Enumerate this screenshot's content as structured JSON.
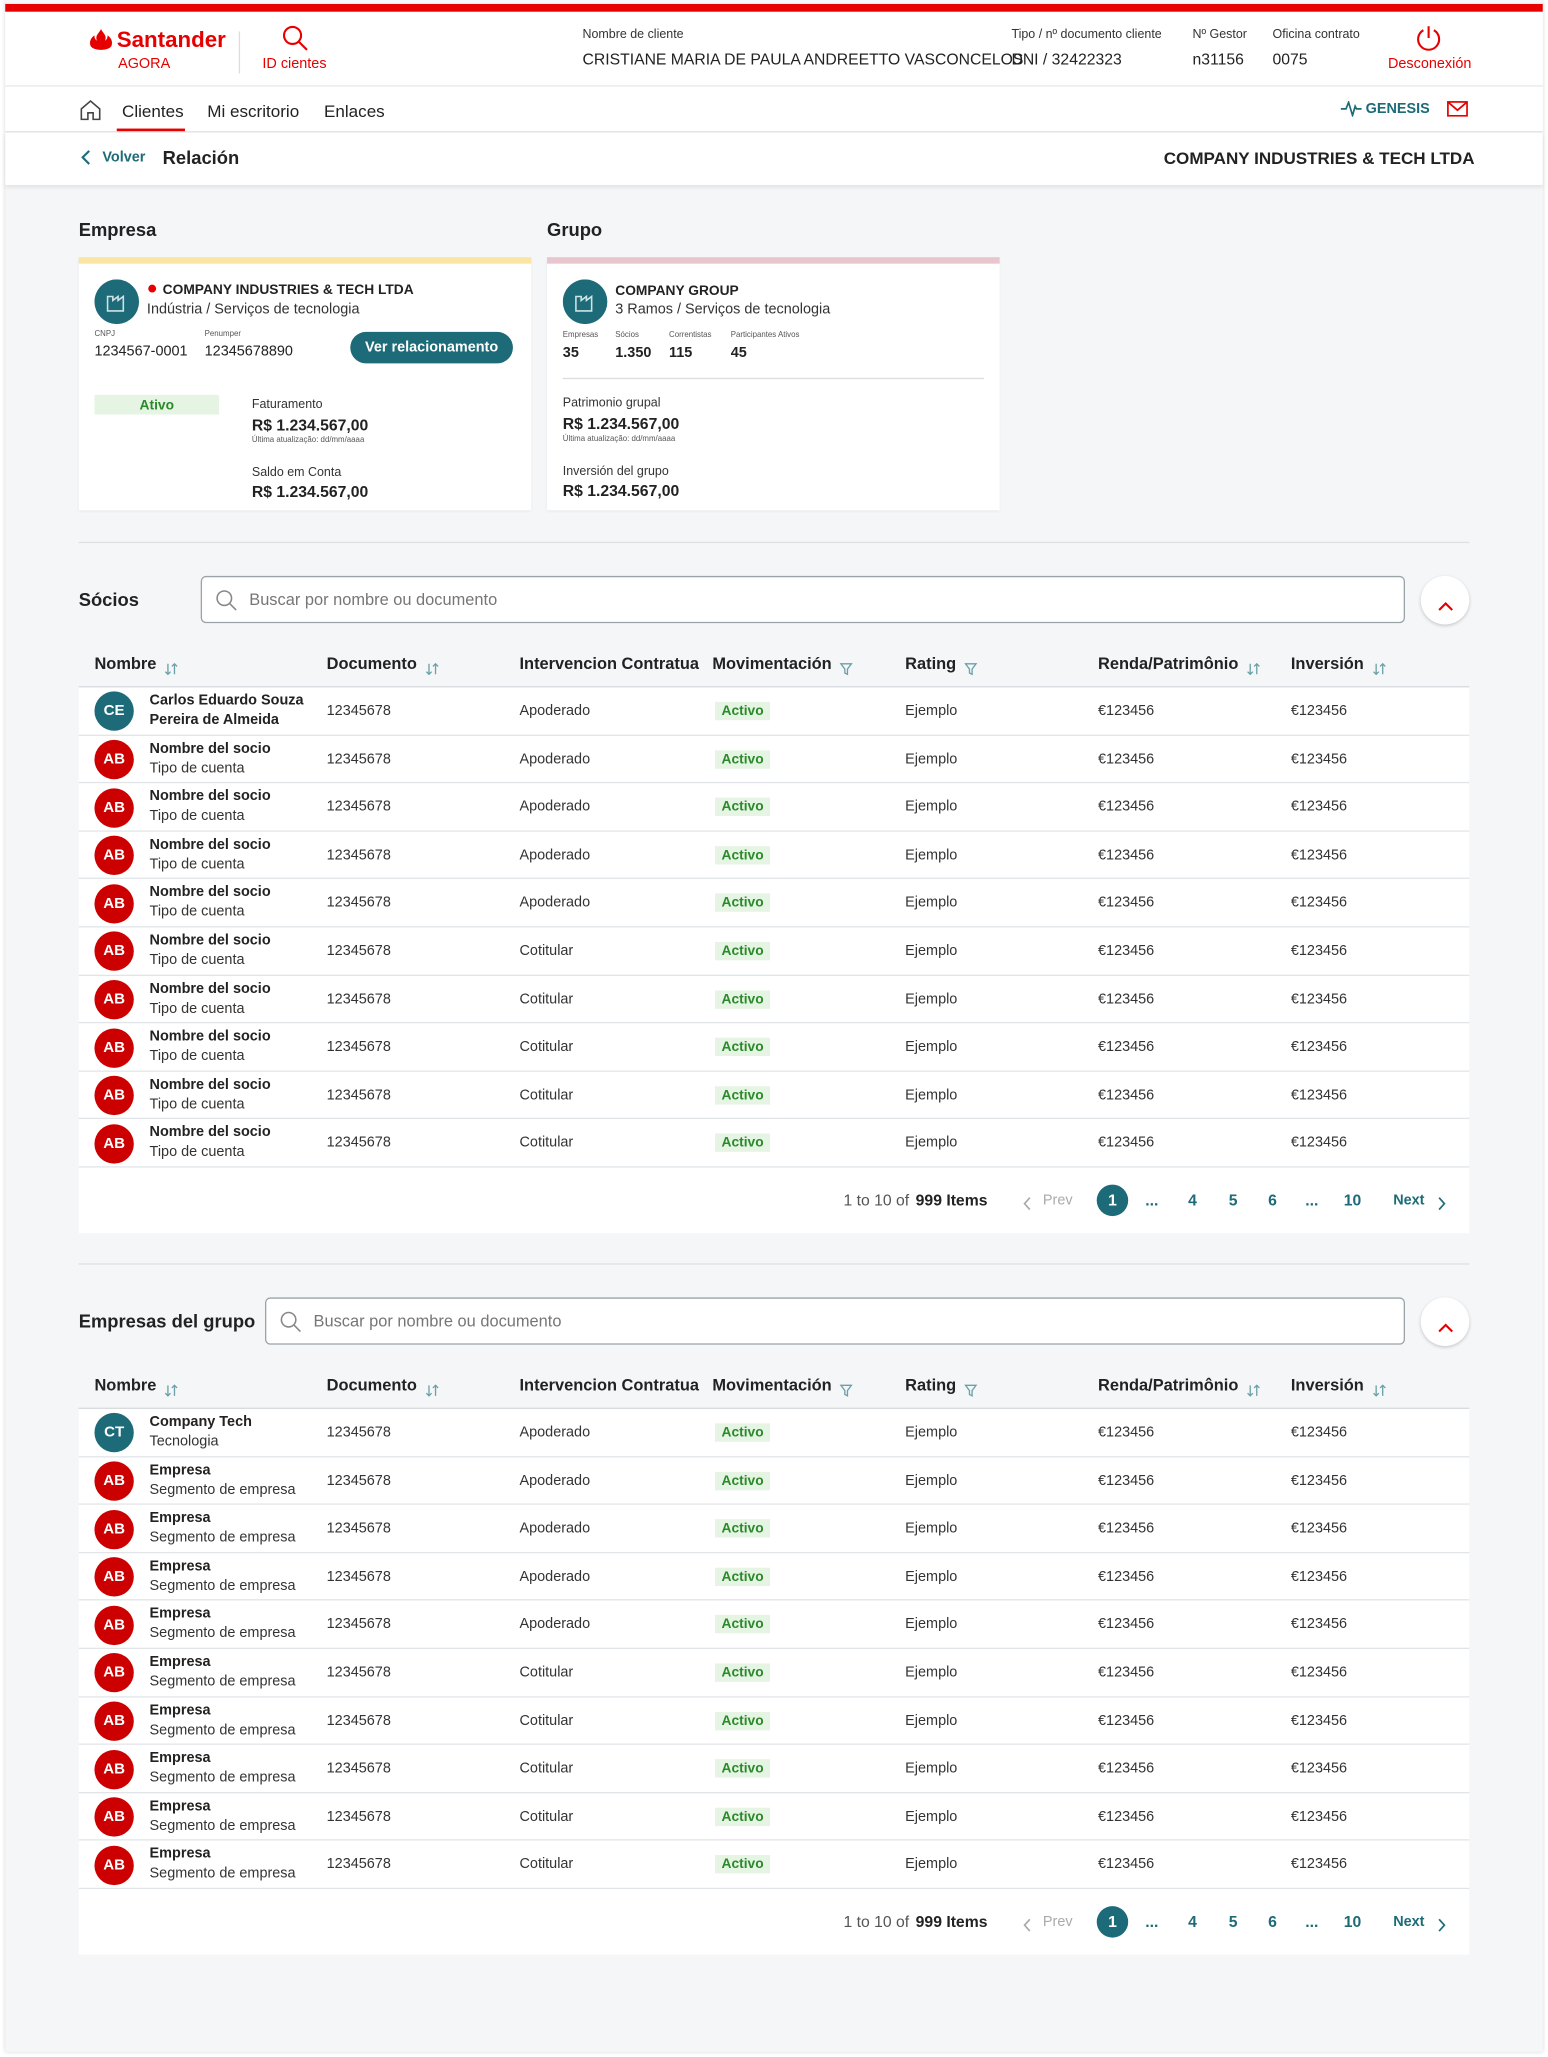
{
  "header": {
    "brand": "Santander",
    "brand_sub": "AGORA",
    "id_clients": "ID cientes",
    "client_name_label": "Nombre de cliente",
    "client_name": "CRISTIANE MARIA DE PAULA ANDREETTO VASCONCELOS",
    "doc_label": "Tipo / nº documento cliente",
    "doc": "DNI / 32422323",
    "gestor_label": "Nº Gestor",
    "gestor": "n31156",
    "oficina_label": "Oficina contrato",
    "oficina": "0075",
    "logout": "Desconexión"
  },
  "nav": {
    "items": [
      "Clientes",
      "Mi escritorio",
      "Enlaces"
    ],
    "genesis": "GENESIS"
  },
  "subheader": {
    "back": "Volver",
    "title": "Relación",
    "company": "COMPANY INDUSTRIES & TECH LTDA"
  },
  "empresa": {
    "section": "Empresa",
    "name": "COMPANY INDUSTRIES & TECH LTDA",
    "sector": "Indústria / Serviços de tecnologia",
    "cnpj_label": "CNPJ",
    "cnpj": "1234567-0001",
    "penumper_label": "Penumper",
    "penumper": "12345678890",
    "button": "Ver relacionamento",
    "status": "Ativo",
    "faturamento_label": "Faturamento",
    "faturamento": "R$ 1.234.567,00",
    "updated": "Última atualização: dd/mm/aaaa",
    "saldo_label": "Saldo em Conta",
    "saldo": "R$ 1.234.567,00"
  },
  "grupo": {
    "section": "Grupo",
    "name": "COMPANY GROUP",
    "sub": "3 Ramos / Serviços de tecnologia",
    "stats": [
      {
        "label": "Empresas",
        "value": "35"
      },
      {
        "label": "Sócios",
        "value": "1.350"
      },
      {
        "label": "Correntistas",
        "value": "115"
      },
      {
        "label": "Participantes Ativos",
        "value": "45"
      }
    ],
    "patrimonio_label": "Patrimonio grupal",
    "patrimonio": "R$ 1.234.567,00",
    "updated": "Última atualização: dd/mm/aaaa",
    "inversion_label": "Inversión del grupo",
    "inversion": "R$ 1.234.567,00"
  },
  "socios": {
    "title": "Sócios",
    "search": "Buscar por nombre ou documento",
    "columns": [
      "Nombre",
      "Documento",
      "Intervencion Contratua",
      "Movimentación",
      "Rating",
      "Renda/Patrimônio",
      "Inversión"
    ],
    "rows": [
      {
        "initials": "CE",
        "avatar_color": "#1d6b78",
        "name": "Carlos Eduardo Souza Pereira de Almeida",
        "sub": null,
        "documento": "12345678",
        "intervencion": "Apoderado",
        "movimentacion": "Activo",
        "rating": "Ejemplo",
        "renda": "€123456",
        "inversion": "€123456"
      },
      {
        "initials": "AB",
        "avatar_color": "#cc0000",
        "name": "Nombre del socio",
        "sub": "Tipo de cuenta",
        "documento": "12345678",
        "intervencion": "Apoderado",
        "movimentacion": "Activo",
        "rating": "Ejemplo",
        "renda": "€123456",
        "inversion": "€123456"
      },
      {
        "initials": "AB",
        "avatar_color": "#cc0000",
        "name": "Nombre del socio",
        "sub": "Tipo de cuenta",
        "documento": "12345678",
        "intervencion": "Apoderado",
        "movimentacion": "Activo",
        "rating": "Ejemplo",
        "renda": "€123456",
        "inversion": "€123456"
      },
      {
        "initials": "AB",
        "avatar_color": "#cc0000",
        "name": "Nombre del socio",
        "sub": "Tipo de cuenta",
        "documento": "12345678",
        "intervencion": "Apoderado",
        "movimentacion": "Activo",
        "rating": "Ejemplo",
        "renda": "€123456",
        "inversion": "€123456"
      },
      {
        "initials": "AB",
        "avatar_color": "#cc0000",
        "name": "Nombre del socio",
        "sub": "Tipo de cuenta",
        "documento": "12345678",
        "intervencion": "Apoderado",
        "movimentacion": "Activo",
        "rating": "Ejemplo",
        "renda": "€123456",
        "inversion": "€123456"
      },
      {
        "initials": "AB",
        "avatar_color": "#cc0000",
        "name": "Nombre del socio",
        "sub": "Tipo de cuenta",
        "documento": "12345678",
        "intervencion": "Cotitular",
        "movimentacion": "Activo",
        "rating": "Ejemplo",
        "renda": "€123456",
        "inversion": "€123456"
      },
      {
        "initials": "AB",
        "avatar_color": "#cc0000",
        "name": "Nombre del socio",
        "sub": "Tipo de cuenta",
        "documento": "12345678",
        "intervencion": "Cotitular",
        "movimentacion": "Activo",
        "rating": "Ejemplo",
        "renda": "€123456",
        "inversion": "€123456"
      },
      {
        "initials": "AB",
        "avatar_color": "#cc0000",
        "name": "Nombre del socio",
        "sub": "Tipo de cuenta",
        "documento": "12345678",
        "intervencion": "Cotitular",
        "movimentacion": "Activo",
        "rating": "Ejemplo",
        "renda": "€123456",
        "inversion": "€123456"
      },
      {
        "initials": "AB",
        "avatar_color": "#cc0000",
        "name": "Nombre del socio",
        "sub": "Tipo de cuenta",
        "documento": "12345678",
        "intervencion": "Cotitular",
        "movimentacion": "Activo",
        "rating": "Ejemplo",
        "renda": "€123456",
        "inversion": "€123456"
      },
      {
        "initials": "AB",
        "avatar_color": "#cc0000",
        "name": "Nombre del socio",
        "sub": "Tipo de cuenta",
        "documento": "12345678",
        "intervencion": "Cotitular",
        "movimentacion": "Activo",
        "rating": "Ejemplo",
        "renda": "€123456",
        "inversion": "€123456"
      }
    ],
    "pagination": {
      "range": "1 to 10 of",
      "total": "999 Items",
      "prev": "Prev",
      "pages": [
        "1",
        "...",
        "4",
        "5",
        "6",
        "...",
        "10"
      ],
      "next": "Next"
    }
  },
  "empresas": {
    "title": "Empresas del grupo",
    "search": "Buscar por nombre ou documento",
    "columns": [
      "Nombre",
      "Documento",
      "Intervencion Contratua",
      "Movimentación",
      "Rating",
      "Renda/Patrimônio",
      "Inversión"
    ],
    "rows": [
      {
        "initials": "CT",
        "avatar_color": "#1d6b78",
        "name": "Company Tech",
        "sub": "Tecnologia",
        "documento": "12345678",
        "intervencion": "Apoderado",
        "movimentacion": "Activo",
        "rating": "Ejemplo",
        "renda": "€123456",
        "inversion": "€123456"
      },
      {
        "initials": "AB",
        "avatar_color": "#cc0000",
        "name": "Empresa",
        "sub": "Segmento de empresa",
        "documento": "12345678",
        "intervencion": "Apoderado",
        "movimentacion": "Activo",
        "rating": "Ejemplo",
        "renda": "€123456",
        "inversion": "€123456"
      },
      {
        "initials": "AB",
        "avatar_color": "#cc0000",
        "name": "Empresa",
        "sub": "Segmento de empresa",
        "documento": "12345678",
        "intervencion": "Apoderado",
        "movimentacion": "Activo",
        "rating": "Ejemplo",
        "renda": "€123456",
        "inversion": "€123456"
      },
      {
        "initials": "AB",
        "avatar_color": "#cc0000",
        "name": "Empresa",
        "sub": "Segmento de empresa",
        "documento": "12345678",
        "intervencion": "Apoderado",
        "movimentacion": "Activo",
        "rating": "Ejemplo",
        "renda": "€123456",
        "inversion": "€123456"
      },
      {
        "initials": "AB",
        "avatar_color": "#cc0000",
        "name": "Empresa",
        "sub": "Segmento de empresa",
        "documento": "12345678",
        "intervencion": "Apoderado",
        "movimentacion": "Activo",
        "rating": "Ejemplo",
        "renda": "€123456",
        "inversion": "€123456"
      },
      {
        "initials": "AB",
        "avatar_color": "#cc0000",
        "name": "Empresa",
        "sub": "Segmento de empresa",
        "documento": "12345678",
        "intervencion": "Cotitular",
        "movimentacion": "Activo",
        "rating": "Ejemplo",
        "renda": "€123456",
        "inversion": "€123456"
      },
      {
        "initials": "AB",
        "avatar_color": "#cc0000",
        "name": "Empresa",
        "sub": "Segmento de empresa",
        "documento": "12345678",
        "intervencion": "Cotitular",
        "movimentacion": "Activo",
        "rating": "Ejemplo",
        "renda": "€123456",
        "inversion": "€123456"
      },
      {
        "initials": "AB",
        "avatar_color": "#cc0000",
        "name": "Empresa",
        "sub": "Segmento de empresa",
        "documento": "12345678",
        "intervencion": "Cotitular",
        "movimentacion": "Activo",
        "rating": "Ejemplo",
        "renda": "€123456",
        "inversion": "€123456"
      },
      {
        "initials": "AB",
        "avatar_color": "#cc0000",
        "name": "Empresa",
        "sub": "Segmento de empresa",
        "documento": "12345678",
        "intervencion": "Cotitular",
        "movimentacion": "Activo",
        "rating": "Ejemplo",
        "renda": "€123456",
        "inversion": "€123456"
      },
      {
        "initials": "AB",
        "avatar_color": "#cc0000",
        "name": "Empresa",
        "sub": "Segmento de empresa",
        "documento": "12345678",
        "intervencion": "Cotitular",
        "movimentacion": "Activo",
        "rating": "Ejemplo",
        "renda": "€123456",
        "inversion": "€123456"
      }
    ],
    "pagination": {
      "range": "1 to 10 of",
      "total": "999 Items",
      "prev": "Prev",
      "pages": [
        "1",
        "...",
        "4",
        "5",
        "6",
        "...",
        "10"
      ],
      "next": "Next"
    }
  }
}
